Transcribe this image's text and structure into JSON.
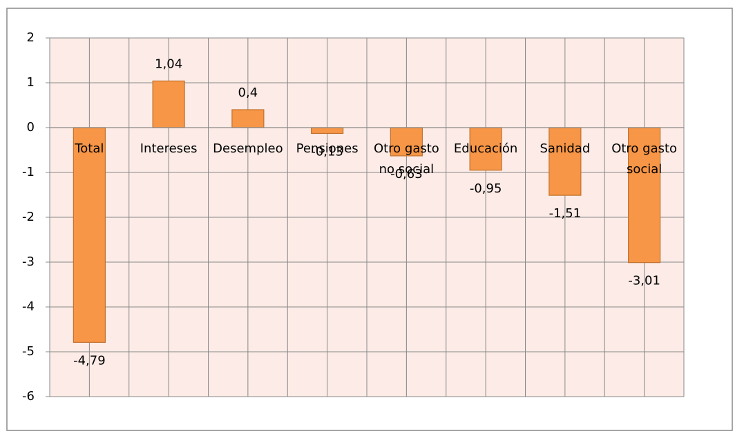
{
  "chart_data": {
    "type": "bar",
    "categories": [
      "Total",
      "Intereses",
      "Desempleo",
      "Pensiones",
      "Otro gasto no social",
      "Educación",
      "Sanidad",
      "Otro gasto social"
    ],
    "values": [
      -4.79,
      1.04,
      0.4,
      -0.13,
      -0.63,
      -0.95,
      -1.51,
      -3.01
    ],
    "value_labels": [
      "-4,79",
      "1,04",
      "0,4",
      "-0,13",
      "-0,63",
      "-0,95",
      "-1,51",
      "-3,01"
    ],
    "color": "#f79646",
    "ylim": [
      -6,
      2
    ],
    "yticks": [
      -6,
      -5,
      -4,
      -3,
      -2,
      -1,
      0,
      1,
      2
    ],
    "grid": true
  }
}
